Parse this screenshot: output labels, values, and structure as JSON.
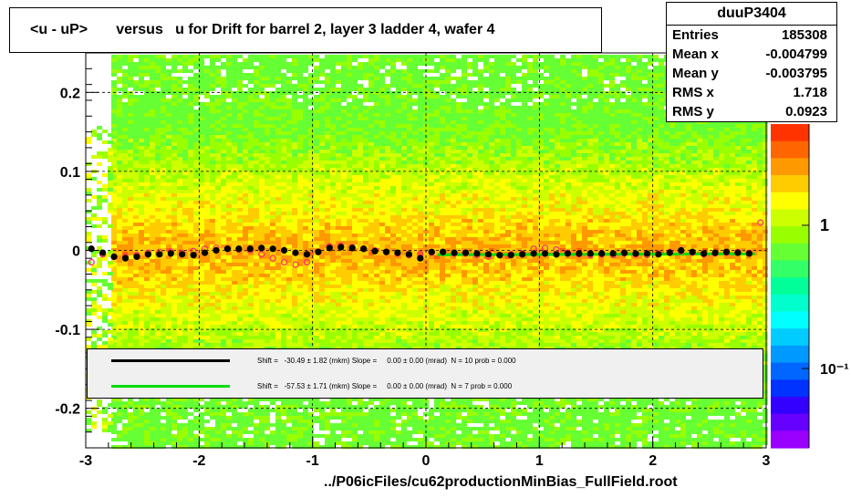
{
  "title": "<u - uP>       versus   u for Drift for barrel 2, layer 3 ladder 4, wafer 4",
  "footer": "../P06icFiles/cu62productionMinBias_FullField.root",
  "stats": {
    "name": "duuP3404",
    "rows": [
      {
        "label": "Entries",
        "value": "185308"
      },
      {
        "label": "Mean x",
        "value": "-0.004799"
      },
      {
        "label": "Mean y",
        "value": "-0.003795"
      },
      {
        "label": "RMS x",
        "value": "1.718"
      },
      {
        "label": "RMS y",
        "value": "0.0923"
      }
    ]
  },
  "legend": [
    {
      "text": "Shift =   -30.49 ± 1.82 (mkm) Slope =     0.00 ± 0.00 (mrad)  N = 10 prob = 0.000",
      "color": "#000000"
    },
    {
      "text": "Shift =   -57.53 ± 1.71 (mkm) Slope =     0.00 ± 0.00 (mrad)  N = 7 prob = 0.000",
      "color": "#00dd00"
    }
  ],
  "chart_data": {
    "type": "heatmap",
    "title": "<u - uP>       versus   u for Drift for barrel 2, layer 3 ladder 4, wafer 4",
    "xlim": [
      -3,
      3
    ],
    "ylim": [
      -0.25,
      0.25
    ],
    "x_ticks": [
      "-3",
      "-2",
      "-1",
      "0",
      "1",
      "2",
      "3"
    ],
    "y_ticks": [
      "-0.2",
      "-0.1",
      "0",
      "0.1",
      "0.2"
    ],
    "y_tick_values": [
      -0.2,
      -0.1,
      0,
      0.1,
      0.2
    ],
    "colorbar_labels": [
      "1",
      "10⁻¹"
    ],
    "colorbar_label_values": [
      1,
      0.1
    ],
    "grid": true,
    "profile_black": {
      "x": [
        -2.95,
        -2.85,
        -2.75,
        -2.65,
        -2.55,
        -2.45,
        -2.35,
        -2.25,
        -2.15,
        -2.05,
        -1.95,
        -1.85,
        -1.75,
        -1.65,
        -1.55,
        -1.45,
        -1.35,
        -1.25,
        -1.15,
        -1.05,
        -0.95,
        -0.85,
        -0.75,
        -0.65,
        -0.55,
        -0.45,
        -0.35,
        -0.25,
        -0.15,
        -0.05,
        0.05,
        0.15,
        0.25,
        0.35,
        0.45,
        0.55,
        0.65,
        0.75,
        0.85,
        0.95,
        1.05,
        1.15,
        1.25,
        1.35,
        1.45,
        1.55,
        1.65,
        1.75,
        1.85,
        1.95,
        2.05,
        2.15,
        2.25,
        2.35,
        2.45,
        2.55,
        2.65,
        2.75,
        2.85
      ],
      "y": [
        0.002,
        -0.003,
        -0.008,
        -0.01,
        -0.008,
        -0.005,
        -0.005,
        -0.004,
        -0.005,
        -0.006,
        -0.003,
        0.0,
        0.002,
        0.002,
        0.002,
        0.003,
        0.002,
        0.0,
        -0.003,
        -0.005,
        -0.002,
        0.003,
        0.004,
        0.003,
        0.002,
        -0.001,
        -0.002,
        -0.003,
        -0.005,
        -0.01,
        -0.002,
        -0.002,
        -0.003,
        -0.003,
        -0.004,
        -0.005,
        -0.006,
        -0.006,
        -0.005,
        -0.004,
        -0.004,
        -0.005,
        -0.004,
        -0.004,
        -0.004,
        -0.004,
        -0.004,
        -0.003,
        -0.004,
        -0.004,
        -0.005,
        -0.003,
        0.0,
        -0.002,
        -0.004,
        -0.003,
        -0.002,
        -0.003,
        -0.004
      ]
    },
    "profile_red": {
      "x": [
        -2.95,
        -2.85,
        -2.75,
        -2.65,
        -2.55,
        -2.45,
        -2.35,
        -2.25,
        -2.15,
        -2.05,
        -1.95,
        -1.85,
        -1.75,
        -1.65,
        -1.55,
        -1.45,
        -1.35,
        -1.25,
        -1.15,
        -1.05,
        -0.95,
        -0.85,
        -0.75,
        -0.65,
        -0.55,
        -0.45,
        -0.35,
        -0.25,
        -0.15,
        -0.05,
        0.05,
        0.15,
        0.25,
        0.35,
        0.45,
        0.55,
        0.65,
        0.75,
        0.85,
        0.95,
        1.05,
        1.15,
        1.25,
        1.35,
        1.45,
        1.55,
        1.65,
        1.75,
        1.85,
        1.95,
        2.05,
        2.15,
        2.25,
        2.35,
        2.45,
        2.55,
        2.65,
        2.75,
        2.85,
        2.95
      ],
      "y": [
        -0.015,
        -0.005,
        -0.008,
        -0.008,
        -0.006,
        -0.003,
        -0.002,
        -0.002,
        -0.003,
        -0.001,
        0.002,
        0.003,
        0.002,
        0.001,
        0.0,
        -0.005,
        -0.01,
        -0.015,
        -0.018,
        -0.015,
        -0.002,
        0.005,
        0.006,
        0.004,
        0.002,
        0.0,
        -0.002,
        -0.004,
        -0.006,
        -0.005,
        -0.003,
        -0.002,
        -0.004,
        -0.004,
        -0.006,
        -0.008,
        -0.006,
        -0.005,
        -0.004,
        0.002,
        0.003,
        0.001,
        -0.003,
        -0.005,
        -0.006,
        -0.005,
        -0.006,
        -0.004,
        -0.005,
        -0.006,
        -0.004,
        -0.002,
        -0.001,
        -0.003,
        -0.005,
        -0.004,
        -0.003,
        -0.002,
        -0.003,
        0.035
      ]
    },
    "fit_green": {
      "x": [
        0.1,
        2.9
      ],
      "y": [
        -0.0055,
        -0.0045
      ]
    }
  }
}
